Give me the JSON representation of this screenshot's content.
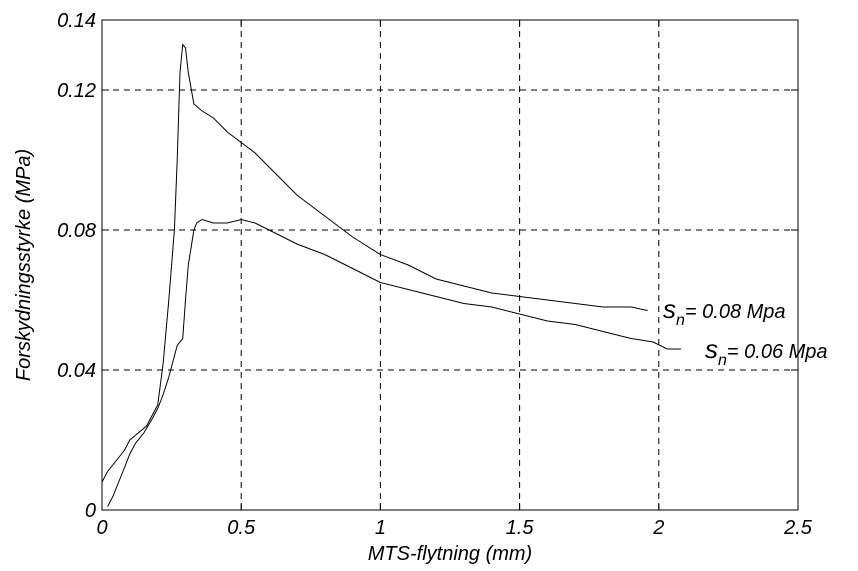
{
  "chart_data": {
    "type": "line",
    "xlabel": "MTS-flytning (mm)",
    "ylabel": "Forskydningsstyrke (MPa)",
    "xlim": [
      0,
      2.5
    ],
    "ylim": [
      0,
      0.14
    ],
    "xticks": [
      0,
      0.5,
      1,
      1.5,
      2,
      2.5
    ],
    "xtick_labels": [
      "0",
      "0.5",
      "1",
      "1.5",
      "2",
      "2.5"
    ],
    "yticks": [
      0,
      0.04,
      0.08,
      0.12,
      0.14
    ],
    "ytick_labels": [
      "0",
      "0.04",
      "0.08",
      "0.12",
      "0.14"
    ],
    "grid": true,
    "series": [
      {
        "annotation": {
          "symbol": "s",
          "subscript": "n",
          "text": "= 0.08  Mpa"
        },
        "x": [
          0,
          0.02,
          0.05,
          0.08,
          0.1,
          0.13,
          0.16,
          0.2,
          0.22,
          0.24,
          0.26,
          0.27,
          0.28,
          0.29,
          0.3,
          0.31,
          0.33,
          0.36,
          0.4,
          0.45,
          0.5,
          0.55,
          0.6,
          0.65,
          0.7,
          0.8,
          0.9,
          1.0,
          1.1,
          1.2,
          1.3,
          1.4,
          1.5,
          1.6,
          1.7,
          1.8,
          1.9,
          1.96
        ],
        "y": [
          0.008,
          0.011,
          0.014,
          0.017,
          0.02,
          0.022,
          0.024,
          0.03,
          0.042,
          0.06,
          0.08,
          0.1,
          0.125,
          0.133,
          0.132,
          0.125,
          0.116,
          0.114,
          0.112,
          0.108,
          0.105,
          0.102,
          0.098,
          0.094,
          0.09,
          0.084,
          0.078,
          0.073,
          0.07,
          0.066,
          0.064,
          0.062,
          0.061,
          0.06,
          0.059,
          0.058,
          0.058,
          0.057
        ]
      },
      {
        "annotation": {
          "symbol": "s",
          "subscript": "n",
          "text": "= 0.06  Mpa"
        },
        "x": [
          0.02,
          0.04,
          0.06,
          0.08,
          0.1,
          0.12,
          0.15,
          0.18,
          0.2,
          0.22,
          0.24,
          0.27,
          0.29,
          0.3,
          0.31,
          0.32,
          0.33,
          0.34,
          0.36,
          0.4,
          0.45,
          0.5,
          0.55,
          0.6,
          0.65,
          0.7,
          0.8,
          0.9,
          1.0,
          1.1,
          1.2,
          1.3,
          1.4,
          1.5,
          1.6,
          1.7,
          1.8,
          1.9,
          1.98,
          2.03,
          2.08
        ],
        "y": [
          0.001,
          0.004,
          0.008,
          0.012,
          0.016,
          0.019,
          0.022,
          0.026,
          0.029,
          0.033,
          0.038,
          0.047,
          0.049,
          0.06,
          0.07,
          0.075,
          0.08,
          0.082,
          0.083,
          0.082,
          0.082,
          0.083,
          0.082,
          0.08,
          0.078,
          0.076,
          0.073,
          0.069,
          0.065,
          0.063,
          0.061,
          0.059,
          0.058,
          0.056,
          0.054,
          0.053,
          0.051,
          0.049,
          0.048,
          0.046,
          0.046
        ]
      }
    ]
  }
}
